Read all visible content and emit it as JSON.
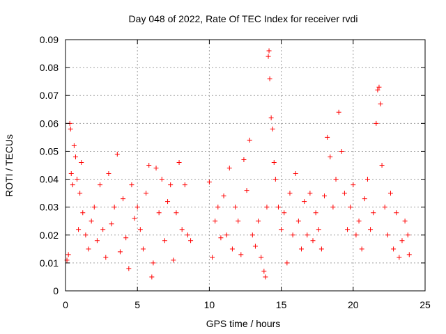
{
  "chart_data": {
    "type": "scatter",
    "title": "Day 048 of 2022, Rate Of TEC Index for receiver rvdi",
    "xlabel": "GPS time / hours",
    "ylabel": "ROTI / TECUs",
    "xlim": [
      0,
      25
    ],
    "ylim": [
      0,
      0.09
    ],
    "x_ticks": [
      0,
      5,
      10,
      15,
      20,
      25
    ],
    "y_ticks": [
      0,
      0.01,
      0.02,
      0.03,
      0.04,
      0.05,
      0.06,
      0.07,
      0.08,
      0.09
    ],
    "x_tick_labels": [
      "0",
      "5",
      "10",
      "15",
      "20",
      "25"
    ],
    "y_tick_labels": [
      "0",
      "0.01",
      "0.02",
      "0.03",
      "0.04",
      "0.05",
      "0.06",
      "0.07",
      "0.08",
      "0.09"
    ],
    "grid": true,
    "marker": "+",
    "color": "#ff0000",
    "series": [
      {
        "points": [
          [
            0.1,
            0.011
          ],
          [
            0.2,
            0.013
          ],
          [
            0.3,
            0.06
          ],
          [
            0.35,
            0.058
          ],
          [
            0.4,
            0.042
          ],
          [
            0.5,
            0.038
          ],
          [
            0.6,
            0.052
          ],
          [
            0.7,
            0.048
          ],
          [
            0.8,
            0.04
          ],
          [
            0.9,
            0.022
          ],
          [
            1.0,
            0.035
          ],
          [
            1.1,
            0.046
          ],
          [
            1.2,
            0.028
          ],
          [
            1.4,
            0.02
          ],
          [
            1.6,
            0.015
          ],
          [
            1.8,
            0.025
          ],
          [
            2.0,
            0.03
          ],
          [
            2.2,
            0.018
          ],
          [
            2.4,
            0.038
          ],
          [
            2.6,
            0.022
          ],
          [
            2.8,
            0.012
          ],
          [
            3.0,
            0.042
          ],
          [
            3.2,
            0.024
          ],
          [
            3.4,
            0.03
          ],
          [
            3.6,
            0.049
          ],
          [
            3.8,
            0.014
          ],
          [
            4.0,
            0.033
          ],
          [
            4.2,
            0.019
          ],
          [
            4.4,
            0.008
          ],
          [
            4.6,
            0.038
          ],
          [
            4.8,
            0.026
          ],
          [
            5.0,
            0.03
          ],
          [
            5.2,
            0.022
          ],
          [
            5.4,
            0.015
          ],
          [
            5.6,
            0.035
          ],
          [
            5.8,
            0.045
          ],
          [
            6.0,
            0.005
          ],
          [
            6.1,
            0.01
          ],
          [
            6.3,
            0.044
          ],
          [
            6.5,
            0.028
          ],
          [
            6.7,
            0.04
          ],
          [
            6.9,
            0.018
          ],
          [
            7.1,
            0.032
          ],
          [
            7.3,
            0.038
          ],
          [
            7.5,
            0.011
          ],
          [
            7.7,
            0.028
          ],
          [
            7.9,
            0.046
          ],
          [
            8.1,
            0.022
          ],
          [
            8.3,
            0.038
          ],
          [
            8.5,
            0.02
          ],
          [
            8.7,
            0.018
          ],
          [
            10.0,
            0.039
          ],
          [
            10.2,
            0.012
          ],
          [
            10.4,
            0.025
          ],
          [
            10.6,
            0.03
          ],
          [
            10.8,
            0.019
          ],
          [
            11.0,
            0.034
          ],
          [
            11.2,
            0.02
          ],
          [
            11.4,
            0.044
          ],
          [
            11.6,
            0.015
          ],
          [
            11.8,
            0.03
          ],
          [
            12.0,
            0.025
          ],
          [
            12.2,
            0.013
          ],
          [
            12.4,
            0.047
          ],
          [
            12.6,
            0.036
          ],
          [
            12.8,
            0.054
          ],
          [
            13.0,
            0.02
          ],
          [
            13.2,
            0.016
          ],
          [
            13.4,
            0.025
          ],
          [
            13.6,
            0.012
          ],
          [
            13.8,
            0.007
          ],
          [
            13.9,
            0.005
          ],
          [
            14.0,
            0.03
          ],
          [
            14.1,
            0.084
          ],
          [
            14.15,
            0.086
          ],
          [
            14.2,
            0.076
          ],
          [
            14.3,
            0.062
          ],
          [
            14.4,
            0.058
          ],
          [
            14.5,
            0.046
          ],
          [
            14.6,
            0.04
          ],
          [
            14.8,
            0.03
          ],
          [
            15.0,
            0.022
          ],
          [
            15.2,
            0.028
          ],
          [
            15.4,
            0.01
          ],
          [
            15.6,
            0.035
          ],
          [
            15.8,
            0.02
          ],
          [
            16.0,
            0.042
          ],
          [
            16.2,
            0.025
          ],
          [
            16.4,
            0.015
          ],
          [
            16.6,
            0.032
          ],
          [
            16.8,
            0.02
          ],
          [
            17.0,
            0.035
          ],
          [
            17.2,
            0.018
          ],
          [
            17.4,
            0.028
          ],
          [
            17.6,
            0.022
          ],
          [
            17.8,
            0.015
          ],
          [
            18.0,
            0.034
          ],
          [
            18.2,
            0.055
          ],
          [
            18.4,
            0.048
          ],
          [
            18.6,
            0.03
          ],
          [
            18.8,
            0.04
          ],
          [
            19.0,
            0.064
          ],
          [
            19.2,
            0.05
          ],
          [
            19.4,
            0.035
          ],
          [
            19.6,
            0.022
          ],
          [
            19.8,
            0.03
          ],
          [
            20.0,
            0.038
          ],
          [
            20.2,
            0.02
          ],
          [
            20.4,
            0.025
          ],
          [
            20.6,
            0.015
          ],
          [
            20.8,
            0.033
          ],
          [
            21.0,
            0.04
          ],
          [
            21.2,
            0.022
          ],
          [
            21.4,
            0.028
          ],
          [
            21.6,
            0.06
          ],
          [
            21.7,
            0.072
          ],
          [
            21.8,
            0.073
          ],
          [
            21.9,
            0.067
          ],
          [
            22.0,
            0.045
          ],
          [
            22.2,
            0.03
          ],
          [
            22.4,
            0.02
          ],
          [
            22.6,
            0.035
          ],
          [
            22.8,
            0.015
          ],
          [
            23.0,
            0.028
          ],
          [
            23.2,
            0.012
          ],
          [
            23.4,
            0.018
          ],
          [
            23.6,
            0.025
          ],
          [
            23.8,
            0.02
          ],
          [
            23.9,
            0.013
          ]
        ]
      }
    ]
  }
}
